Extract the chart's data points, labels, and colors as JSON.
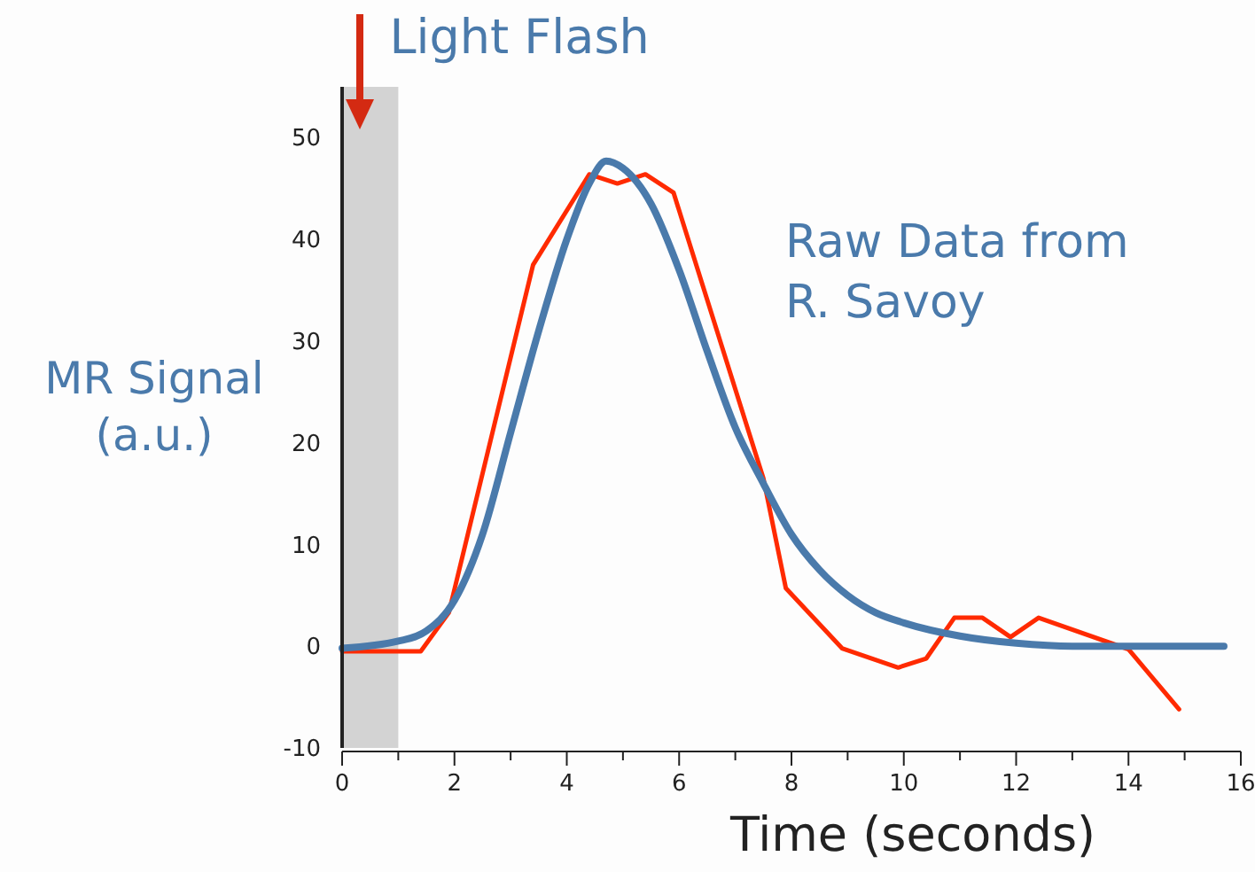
{
  "chart_data": {
    "type": "line",
    "xlabel": "Time (seconds)",
    "ylabel": "MR Signal (a.u.)",
    "xlim": [
      0,
      16
    ],
    "ylim": [
      -10,
      55
    ],
    "xticks": [
      0,
      {
        "value": 1,
        "label": null
      },
      2,
      {
        "value": 3,
        "label": null
      },
      4,
      {
        "value": 5,
        "label": null
      },
      6,
      {
        "value": 7,
        "label": null
      },
      8,
      {
        "value": 9,
        "label": null
      },
      10,
      {
        "value": 11,
        "label": null
      },
      12,
      {
        "value": 13,
        "label": null
      },
      14,
      {
        "value": 15,
        "label": null
      },
      16
    ],
    "yticks": [
      -10,
      0,
      10,
      20,
      30,
      40,
      50
    ],
    "grid": false,
    "marker": "none",
    "line_style": "solid",
    "bands": [
      {
        "axis": "x",
        "from": 0,
        "to": 1,
        "label": "Light Flash",
        "color": "#d3d3d3"
      }
    ],
    "annotations": [
      "Raw Data from R. Savoy"
    ],
    "series": [
      {
        "color": "#ff2a00",
        "x": [
          0,
          1.4,
          1.9,
          3.4,
          4.4,
          4.9,
          5.4,
          5.9,
          7.5,
          7.9,
          8.9,
          9.9,
          10.4,
          10.9,
          11.4,
          11.9,
          12.4,
          14,
          14.9
        ],
        "values": [
          -0.5,
          -0.5,
          3.3,
          37.5,
          46.4,
          45.5,
          46.4,
          44.6,
          16.5,
          5.7,
          -0.2,
          -2.1,
          -1.2,
          2.8,
          2.8,
          0.9,
          2.8,
          -0.3,
          -6.2
        ]
      },
      {
        "color": "#4a7aab",
        "x": [
          0,
          1,
          1.5,
          2,
          2.5,
          3,
          3.5,
          4,
          4.4,
          4.7,
          5,
          5.5,
          6,
          6.5,
          7,
          7.5,
          8,
          8.5,
          9,
          9.5,
          10,
          11,
          12,
          13,
          14,
          15,
          15.7
        ],
        "values": [
          -0.2,
          0.5,
          1.5,
          4.5,
          11,
          21,
          31,
          40,
          45.5,
          47.7,
          47,
          43.5,
          37,
          29,
          21.5,
          16,
          11,
          7.5,
          5,
          3.3,
          2.3,
          1,
          0.3,
          0,
          0,
          0,
          0
        ]
      }
    ]
  }
}
